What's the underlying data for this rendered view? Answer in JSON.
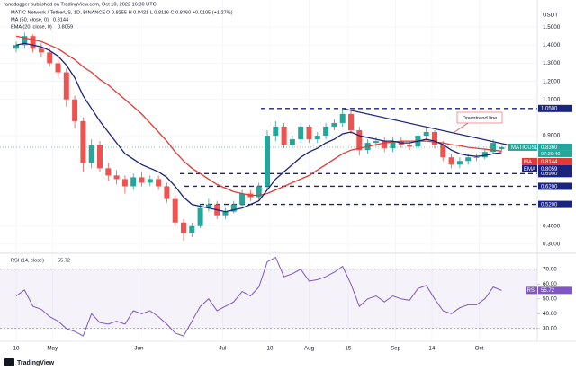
{
  "header": {
    "publisher": "ranadagger published on TradingView.com, Oct 10, 2022 16:30 UTC",
    "symbol": "MATIC Network / TetherUS, 1D, BINANCE",
    "ohlc": "O 0.8255 H 0.8421 L 0.8116 C 0.8360 +0.0105 (+1.27%)"
  },
  "currency": "USDT",
  "footer": "TradingView",
  "chart_data": [
    {
      "type": "candlestick",
      "up_color": "#26a69a",
      "down_color": "#ef5350",
      "open": [
        1.38,
        1.4,
        1.45,
        1.38,
        1.36,
        1.3,
        1.25,
        1.1,
        0.98,
        0.75,
        0.85,
        0.72,
        0.68,
        0.66,
        0.62,
        0.67,
        0.64,
        0.66,
        0.62,
        0.55,
        0.42,
        0.36,
        0.4,
        0.5,
        0.52,
        0.46,
        0.48,
        0.52,
        0.58,
        0.56,
        0.62,
        0.9,
        0.95,
        0.85,
        0.88,
        0.95,
        0.88,
        0.9,
        0.95,
        0.97,
        1.02,
        0.93,
        0.82,
        0.86,
        0.87,
        0.83,
        0.87,
        0.85,
        0.84,
        0.9,
        0.92,
        0.85,
        0.78,
        0.74,
        0.76,
        0.78,
        0.78,
        0.81,
        0.8255
      ],
      "high": [
        1.42,
        1.47,
        1.46,
        1.41,
        1.38,
        1.33,
        1.27,
        1.12,
        1.0,
        0.88,
        0.87,
        0.75,
        0.71,
        0.68,
        0.69,
        0.7,
        0.68,
        0.68,
        0.64,
        0.57,
        0.44,
        0.42,
        0.52,
        0.55,
        0.54,
        0.5,
        0.54,
        0.6,
        0.6,
        0.64,
        0.93,
        0.98,
        0.97,
        0.9,
        0.97,
        0.96,
        0.92,
        0.97,
        0.99,
        1.05,
        1.04,
        0.95,
        0.88,
        0.89,
        0.89,
        0.89,
        0.89,
        0.87,
        0.92,
        0.94,
        0.93,
        0.87,
        0.8,
        0.78,
        0.8,
        0.8,
        0.83,
        0.88,
        0.8421
      ],
      "low": [
        1.36,
        1.38,
        1.36,
        1.33,
        1.28,
        1.22,
        1.06,
        0.94,
        0.7,
        0.72,
        0.7,
        0.65,
        0.63,
        0.58,
        0.6,
        0.62,
        0.62,
        0.6,
        0.53,
        0.4,
        0.32,
        0.34,
        0.39,
        0.48,
        0.44,
        0.44,
        0.47,
        0.51,
        0.54,
        0.54,
        0.6,
        0.87,
        0.83,
        0.83,
        0.86,
        0.86,
        0.86,
        0.88,
        0.93,
        0.95,
        0.91,
        0.79,
        0.8,
        0.84,
        0.81,
        0.81,
        0.83,
        0.82,
        0.83,
        0.88,
        0.83,
        0.76,
        0.72,
        0.72,
        0.74,
        0.76,
        0.77,
        0.8,
        0.8116
      ],
      "close": [
        1.4,
        1.45,
        1.38,
        1.36,
        1.3,
        1.25,
        1.1,
        0.98,
        0.75,
        0.85,
        0.72,
        0.68,
        0.66,
        0.62,
        0.67,
        0.64,
        0.66,
        0.62,
        0.55,
        0.42,
        0.36,
        0.4,
        0.5,
        0.52,
        0.46,
        0.48,
        0.52,
        0.58,
        0.56,
        0.62,
        0.9,
        0.95,
        0.85,
        0.88,
        0.95,
        0.88,
        0.9,
        0.95,
        0.97,
        1.02,
        0.93,
        0.82,
        0.86,
        0.87,
        0.83,
        0.87,
        0.85,
        0.84,
        0.9,
        0.92,
        0.85,
        0.78,
        0.74,
        0.76,
        0.78,
        0.78,
        0.81,
        0.86,
        0.836
      ],
      "series": [
        {
          "name": "MA (50, close, 0)",
          "short": "MA",
          "color": "#e53935",
          "value_label": "0.8144",
          "values": [
            1.45,
            1.44,
            1.43,
            1.42,
            1.4,
            1.38,
            1.35,
            1.32,
            1.28,
            1.25,
            1.21,
            1.18,
            1.14,
            1.1,
            1.06,
            1.02,
            0.97,
            0.92,
            0.87,
            0.81,
            0.76,
            0.72,
            0.69,
            0.66,
            0.63,
            0.61,
            0.59,
            0.58,
            0.57,
            0.57,
            0.58,
            0.6,
            0.62,
            0.64,
            0.66,
            0.68,
            0.71,
            0.74,
            0.77,
            0.8,
            0.82,
            0.83,
            0.84,
            0.85,
            0.86,
            0.865,
            0.87,
            0.87,
            0.87,
            0.87,
            0.865,
            0.86,
            0.85,
            0.845,
            0.835,
            0.83,
            0.825,
            0.82,
            0.8144
          ]
        },
        {
          "name": "EMA (20, close, 0)",
          "short": "EMA",
          "color": "#1a237e",
          "value_label": "0.8059",
          "values": [
            1.4,
            1.41,
            1.4,
            1.39,
            1.37,
            1.34,
            1.29,
            1.22,
            1.12,
            1.05,
            0.98,
            0.92,
            0.86,
            0.8,
            0.77,
            0.74,
            0.72,
            0.7,
            0.67,
            0.62,
            0.56,
            0.52,
            0.51,
            0.5,
            0.49,
            0.48,
            0.49,
            0.5,
            0.52,
            0.54,
            0.6,
            0.66,
            0.7,
            0.74,
            0.78,
            0.81,
            0.83,
            0.86,
            0.88,
            0.91,
            0.92,
            0.9,
            0.89,
            0.88,
            0.87,
            0.87,
            0.86,
            0.86,
            0.87,
            0.88,
            0.87,
            0.85,
            0.82,
            0.8,
            0.79,
            0.785,
            0.79,
            0.8,
            0.8059
          ]
        }
      ],
      "ylim": [
        0.25,
        1.6
      ],
      "yticks": [
        {
          "value": 1.5,
          "label": "1.5000"
        },
        {
          "value": 1.4,
          "label": "1.4000"
        },
        {
          "value": 1.3,
          "label": "1.3000"
        },
        {
          "value": 1.2,
          "label": "1.2000"
        },
        {
          "value": 1.1,
          "label": "1.1000"
        },
        {
          "value": 0.9,
          "label": "0.9000"
        },
        {
          "value": 0.4,
          "label": "0.4000"
        },
        {
          "value": 0.3,
          "label": "0.3000"
        }
      ],
      "xticks": [
        {
          "value": 0,
          "label": "18"
        },
        {
          "value": 4.33,
          "label": "May"
        },
        {
          "value": 14.67,
          "label": "Jun"
        },
        {
          "value": 24.67,
          "label": "Jul"
        },
        {
          "value": 30.33,
          "label": "18"
        },
        {
          "value": 35,
          "label": "Aug"
        },
        {
          "value": 39.67,
          "label": "15"
        },
        {
          "value": 45.33,
          "label": "Sep"
        },
        {
          "value": 49.67,
          "label": "14"
        },
        {
          "value": 55.33,
          "label": "Oct"
        }
      ],
      "levels": [
        {
          "value": 1.05,
          "label": "1.0500"
        },
        {
          "value": 0.69,
          "label": "0.6900"
        },
        {
          "value": 0.62,
          "label": "0.6200"
        },
        {
          "value": 0.52,
          "label": "0.5200"
        }
      ],
      "level_color": "#1a237e",
      "trendline": {
        "label": "Downtrend line",
        "values": [
          1.05,
          0.85
        ],
        "color": "#1a237e"
      },
      "last": {
        "value": 0.836,
        "label": "0.8360",
        "name": "MATICUSDT",
        "countdown": "07:29:40",
        "color": "#26a69a"
      },
      "grid": true
    },
    {
      "type": "line",
      "title": "RSI (14, close)",
      "series": [
        {
          "name": "RSI",
          "color": "#7e57c2",
          "value_label": "55.72",
          "values": [
            52,
            56,
            45,
            43,
            38,
            35,
            30,
            28,
            25,
            40,
            34,
            33,
            35,
            33,
            42,
            40,
            42,
            38,
            33,
            27,
            25,
            35,
            45,
            50,
            42,
            45,
            48,
            55,
            52,
            58,
            75,
            78,
            65,
            67,
            70,
            62,
            63,
            65,
            68,
            72,
            60,
            45,
            50,
            52,
            48,
            52,
            50,
            49,
            57,
            59,
            50,
            42,
            40,
            44,
            46,
            46,
            50,
            58,
            55.72
          ]
        }
      ],
      "band": [
        30,
        70
      ],
      "band_color": "#7e57c2",
      "ylim": [
        22,
        82
      ],
      "yticks": [
        {
          "value": 70,
          "label": "70.00"
        },
        {
          "value": 60,
          "label": "60.00"
        },
        {
          "value": 50,
          "label": "50.00"
        },
        {
          "value": 40,
          "label": "40.00"
        },
        {
          "value": 30,
          "label": "30.00"
        }
      ]
    }
  ]
}
